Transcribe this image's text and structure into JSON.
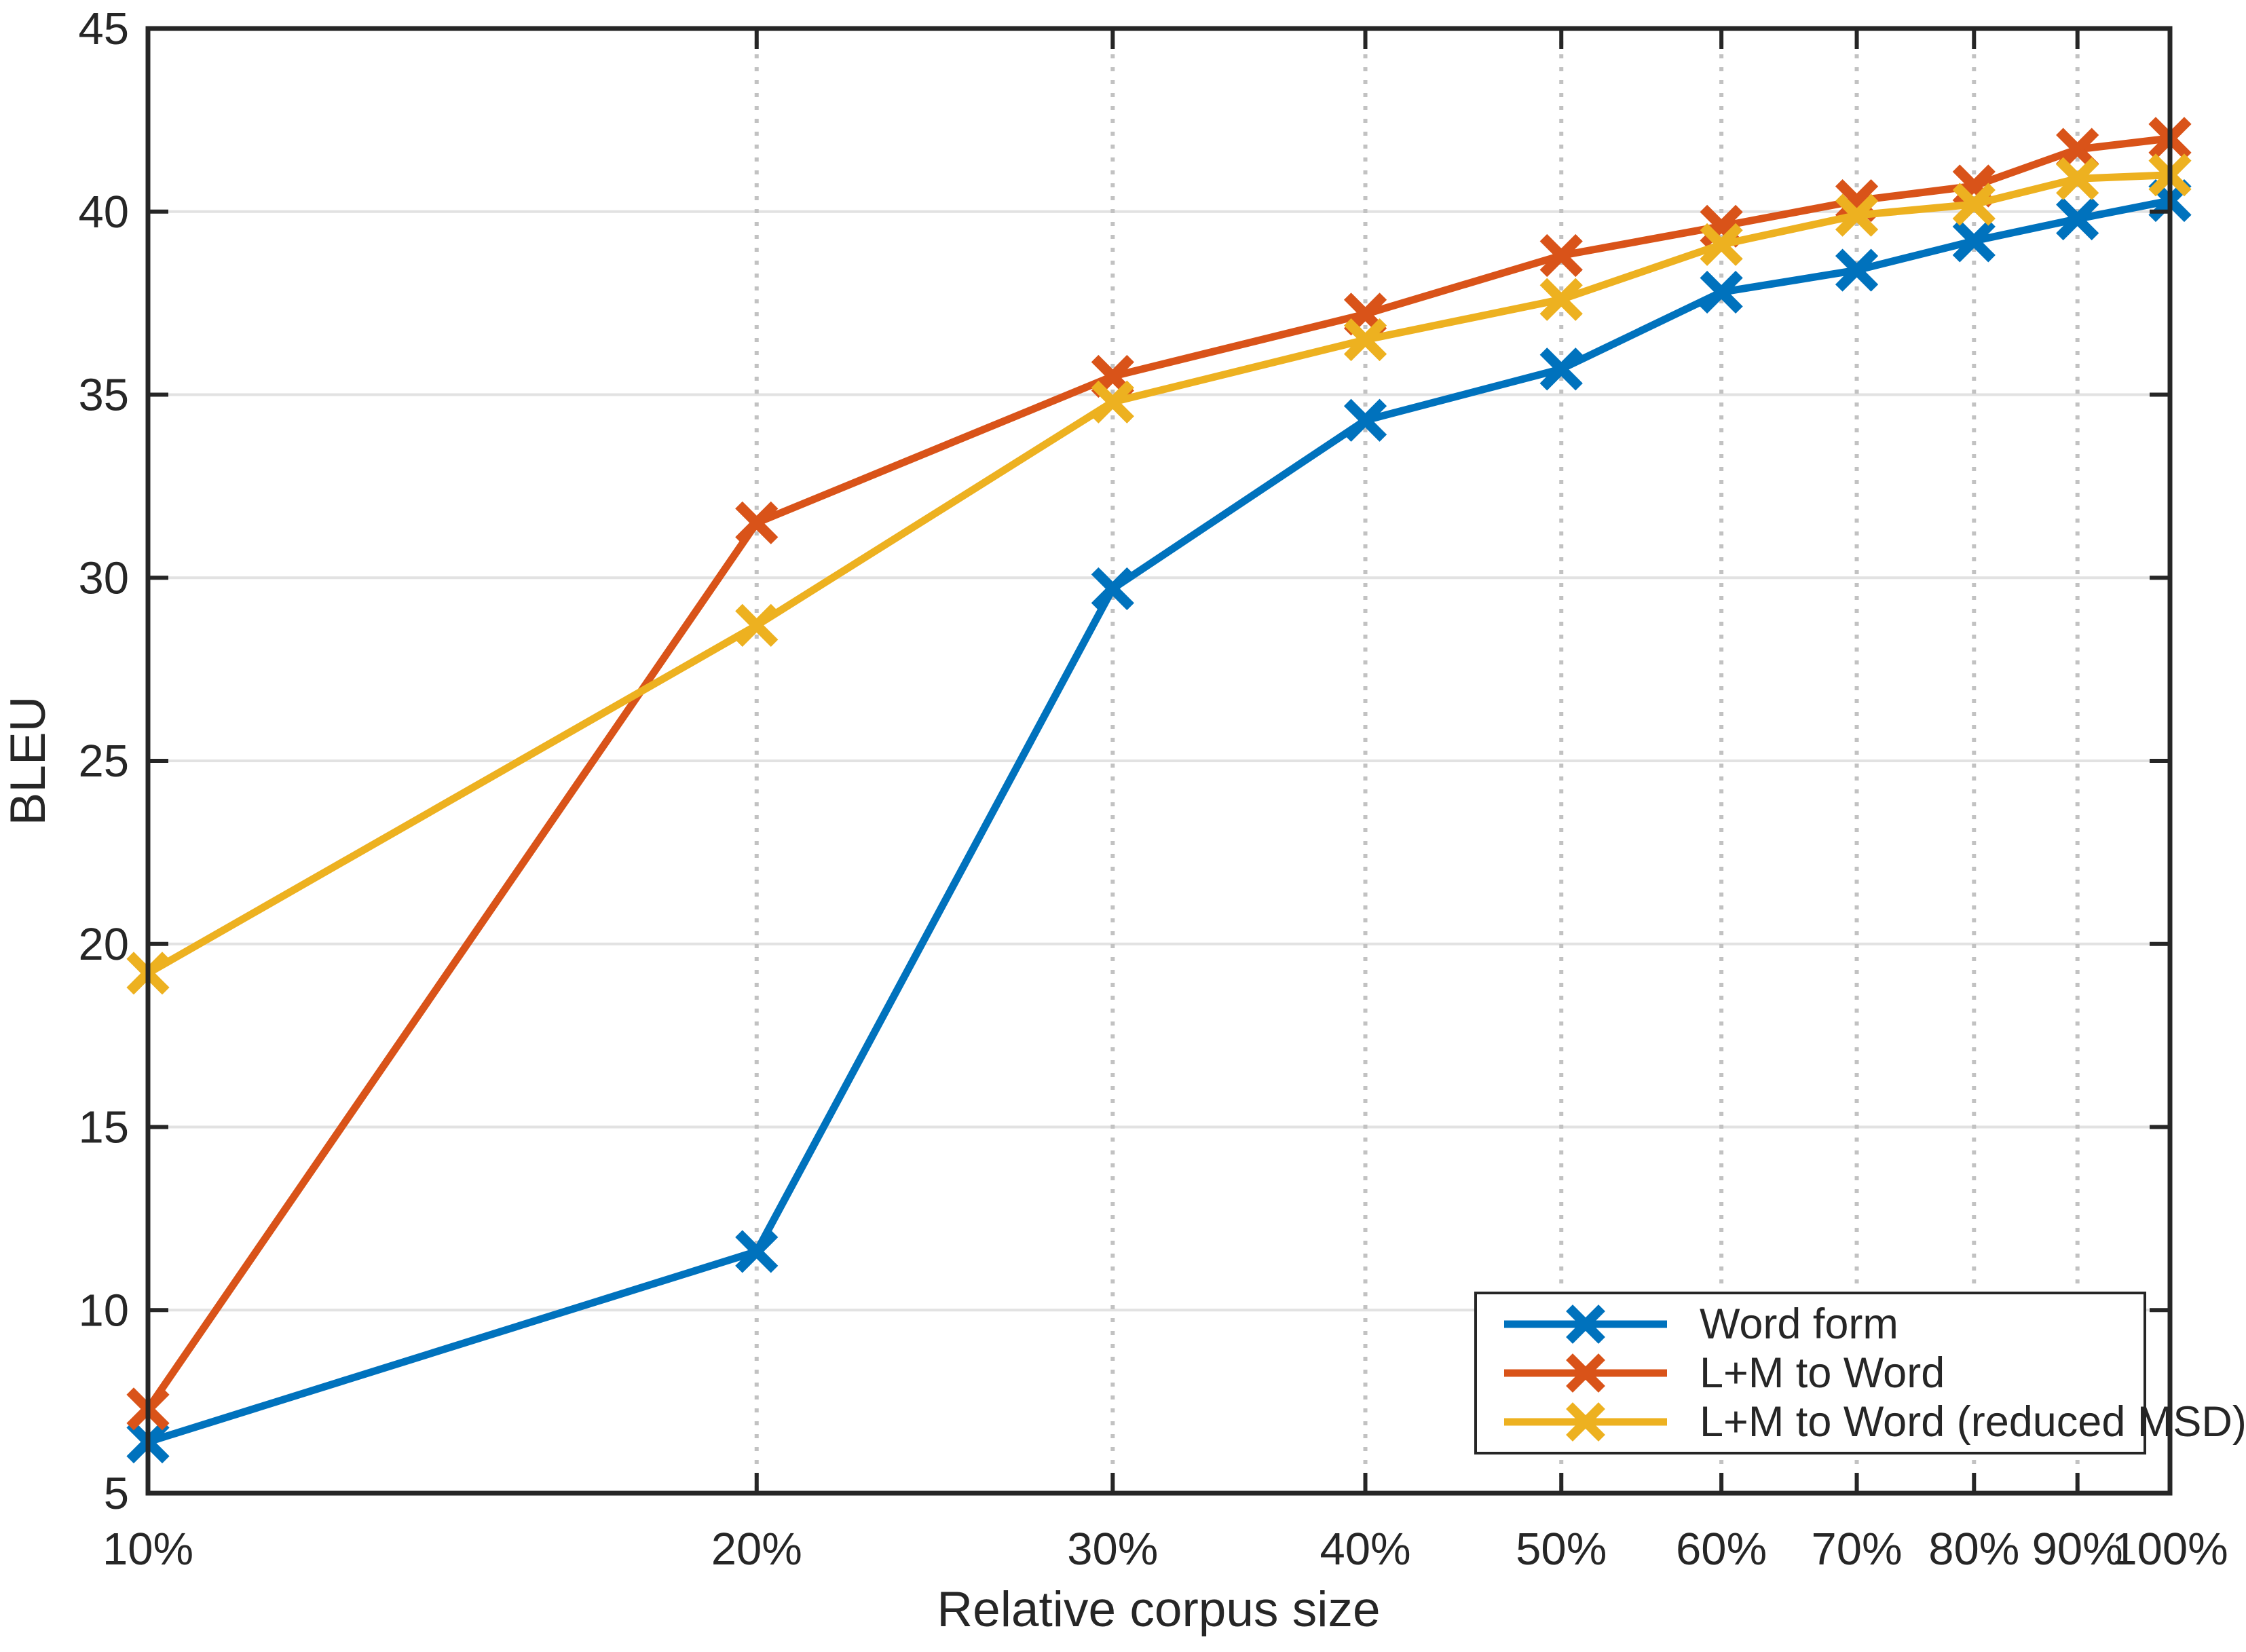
{
  "chart_data": {
    "type": "line",
    "title": "",
    "xlabel": "Relative corpus size",
    "ylabel": "BLEU",
    "x_scale": "log",
    "x_values": [
      10,
      20,
      30,
      40,
      50,
      60,
      70,
      80,
      90,
      100
    ],
    "x_tick_labels": [
      "10%",
      "20%",
      "30%",
      "40%",
      "50%",
      "60%",
      "70%",
      "80%",
      "90%",
      "100%"
    ],
    "ylim": [
      5,
      45
    ],
    "y_ticks": [
      5,
      10,
      15,
      20,
      25,
      30,
      35,
      40,
      45
    ],
    "y_tick_labels": [
      "5",
      "10",
      "15",
      "20",
      "25",
      "30",
      "35",
      "40",
      "45"
    ],
    "grid": {
      "horizontal": "solid",
      "vertical": "dotted"
    },
    "axis_color": "#262626",
    "grid_color_horizontal": "#e2e2e2",
    "grid_color_vertical": "#c2c2c2",
    "legend_position": "bottom-right",
    "marker": "x",
    "series": [
      {
        "name": "Word form",
        "color": "#0072BD",
        "values": [
          6.4,
          11.6,
          29.7,
          34.3,
          35.7,
          37.8,
          38.4,
          39.2,
          39.8,
          40.3
        ]
      },
      {
        "name": "L+M to Word",
        "color": "#D95319",
        "values": [
          7.3,
          31.5,
          35.5,
          37.2,
          38.8,
          39.6,
          40.3,
          40.7,
          41.7,
          42.0
        ]
      },
      {
        "name": "L+M to Word (reduced MSD)",
        "color": "#EDB120",
        "values": [
          19.2,
          28.7,
          34.8,
          36.5,
          37.6,
          39.1,
          39.9,
          40.2,
          40.9,
          41.0
        ]
      }
    ]
  }
}
